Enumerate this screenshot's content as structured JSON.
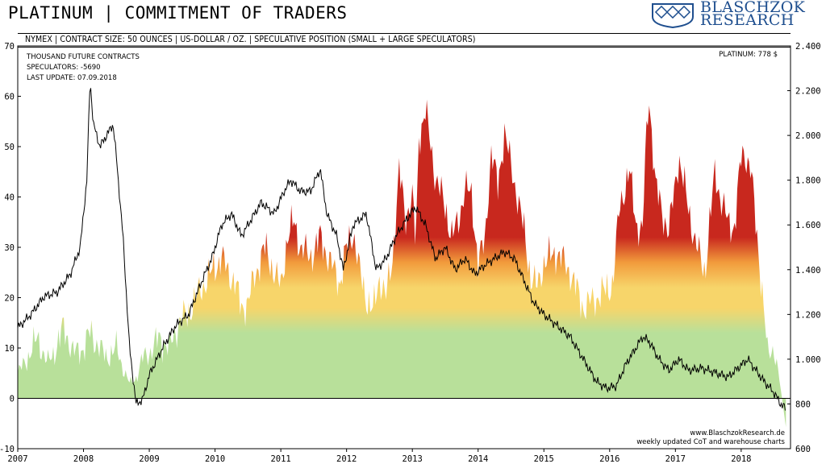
{
  "header": {
    "title": "PLATINUM | COMMITMENT OF TRADERS",
    "subtitle": "NYMEX | CONTRACT SIZE: 50 OUNCES | US-DOLLAR / OZ. | SPECULATIVE POSITION (SMALL + LARGE SPECULATORS)",
    "logo_line1": "BLASCHZOK",
    "logo_line2": "RESEARCH"
  },
  "colors": {
    "green": "#b8e09a",
    "yellow": "#f7d56a",
    "orange": "#f29b3c",
    "red": "#c8281e",
    "price_line": "#000000"
  },
  "chart_data": {
    "type": "area",
    "title": "PLATINUM | COMMITMENT OF TRADERS",
    "left_axis": {
      "label": "THOUSAND FUTURE CONTRACTS",
      "ylim": [
        -10,
        70
      ],
      "ticks": [
        70,
        60,
        50,
        40,
        30,
        20,
        10,
        0,
        -10
      ]
    },
    "right_axis": {
      "label": "PLATINUM",
      "ylim": [
        600,
        2400
      ],
      "ticks": [
        "2.400",
        "2.200",
        "2.000",
        "1.800",
        "1.600",
        "1.400",
        "1.200",
        "1.000",
        "800",
        "600"
      ],
      "tick_values": [
        2400,
        2200,
        2000,
        1800,
        1600,
        1400,
        1200,
        1000,
        800,
        600
      ]
    },
    "xlim": [
      2007.0,
      2018.75
    ],
    "x_ticks": [
      "2007",
      "2008",
      "2009",
      "2010",
      "2011",
      "2012",
      "2013",
      "2014",
      "2015",
      "2016",
      "2017",
      "2018"
    ],
    "color_bands": {
      "green_below": 13,
      "yellow_from": 18,
      "orange_from": 27,
      "red_from": 32
    },
    "info_lines": [
      "THOUSAND FUTURE CONTRACTS",
      "SPECULATORS: -5690",
      "LAST UPDATE: 07.09.2018"
    ],
    "price_label": "PLATINUM: 778 $",
    "credit_lines": [
      "www.BlaschzokResearch.de",
      "weekly updated CoT and warehouse charts"
    ],
    "series": [
      {
        "name": "Speculators (thousand contracts)",
        "axis": "left",
        "x": [
          2007.0,
          2007.15,
          2007.3,
          2007.45,
          2007.55,
          2007.7,
          2007.85,
          2008.0,
          2008.1,
          2008.2,
          2008.35,
          2008.5,
          2008.6,
          2008.7,
          2008.8,
          2008.9,
          2009.0,
          2009.15,
          2009.3,
          2009.45,
          2009.6,
          2009.75,
          2009.9,
          2010.0,
          2010.1,
          2010.2,
          2010.3,
          2010.4,
          2010.5,
          2010.6,
          2010.75,
          2010.9,
          2011.0,
          2011.1,
          2011.2,
          2011.3,
          2011.45,
          2011.6,
          2011.75,
          2011.9,
          2012.0,
          2012.1,
          2012.2,
          2012.3,
          2012.4,
          2012.5,
          2012.6,
          2012.7,
          2012.8,
          2012.9,
          2013.0,
          2013.05,
          2013.1,
          2013.2,
          2013.35,
          2013.5,
          2013.6,
          2013.7,
          2013.8,
          2013.9,
          2014.0,
          2014.1,
          2014.2,
          2014.3,
          2014.4,
          2014.5,
          2014.6,
          2014.7,
          2014.8,
          2014.9,
          2015.0,
          2015.2,
          2015.4,
          2015.6,
          2015.8,
          2016.0,
          2016.05,
          2016.15,
          2016.3,
          2016.4,
          2016.5,
          2016.55,
          2016.6,
          2016.7,
          2016.8,
          2016.9,
          2017.0,
          2017.05,
          2017.15,
          2017.3,
          2017.45,
          2017.6,
          2017.7,
          2017.8,
          2017.9,
          2018.0,
          2018.05,
          2018.15,
          2018.2,
          2018.3,
          2018.4,
          2018.5,
          2018.6,
          2018.68
        ],
        "values": [
          5,
          8,
          12,
          7,
          9,
          14,
          9,
          10,
          13,
          11,
          8,
          10,
          6,
          3,
          4,
          8,
          9,
          12,
          10,
          15,
          17,
          21,
          24,
          26,
          28,
          25,
          23,
          18,
          19,
          24,
          30,
          25,
          22,
          32,
          35,
          30,
          28,
          32,
          27,
          23,
          30,
          33,
          25,
          20,
          17,
          24,
          20,
          28,
          45,
          36,
          40,
          30,
          52,
          57,
          44,
          38,
          32,
          35,
          42,
          40,
          27,
          31,
          49,
          42,
          53,
          46,
          40,
          33,
          24,
          22,
          27,
          29,
          25,
          18,
          20,
          22,
          23,
          38,
          45,
          35,
          33,
          50,
          60,
          42,
          37,
          33,
          43,
          48,
          41,
          31,
          25,
          45,
          39,
          35,
          34,
          48,
          49,
          45,
          38,
          24,
          9,
          10,
          2,
          -5.7
        ]
      },
      {
        "name": "Platinum price (USD/oz)",
        "axis": "right",
        "x": [
          2007.0,
          2007.2,
          2007.4,
          2007.6,
          2007.8,
          2007.95,
          2008.05,
          2008.1,
          2008.15,
          2008.25,
          2008.35,
          2008.45,
          2008.5,
          2008.6,
          2008.7,
          2008.8,
          2008.9,
          2009.0,
          2009.2,
          2009.4,
          2009.6,
          2009.8,
          2009.95,
          2010.1,
          2010.25,
          2010.4,
          2010.5,
          2010.7,
          2010.9,
          2011.05,
          2011.15,
          2011.3,
          2011.45,
          2011.6,
          2011.7,
          2011.85,
          2011.95,
          2012.1,
          2012.3,
          2012.45,
          2012.6,
          2012.75,
          2012.9,
          2013.05,
          2013.2,
          2013.35,
          2013.5,
          2013.65,
          2013.8,
          2013.95,
          2014.1,
          2014.25,
          2014.4,
          2014.55,
          2014.7,
          2014.85,
          2015.0,
          2015.2,
          2015.4,
          2015.6,
          2015.8,
          2015.95,
          2016.1,
          2016.25,
          2016.4,
          2016.5,
          2016.6,
          2016.75,
          2016.9,
          2017.05,
          2017.2,
          2017.4,
          2017.6,
          2017.8,
          2017.95,
          2018.1,
          2018.2,
          2018.35,
          2018.5,
          2018.6,
          2018.68
        ],
        "values": [
          1140,
          1200,
          1280,
          1300,
          1380,
          1500,
          1800,
          2250,
          2050,
          1950,
          2000,
          2050,
          1900,
          1550,
          1050,
          800,
          820,
          930,
          1050,
          1150,
          1200,
          1350,
          1450,
          1600,
          1650,
          1550,
          1600,
          1700,
          1650,
          1750,
          1800,
          1750,
          1750,
          1850,
          1650,
          1550,
          1400,
          1600,
          1650,
          1400,
          1450,
          1550,
          1620,
          1680,
          1600,
          1450,
          1500,
          1400,
          1450,
          1380,
          1420,
          1450,
          1480,
          1450,
          1350,
          1250,
          1200,
          1150,
          1100,
          1000,
          900,
          870,
          880,
          980,
          1050,
          1100,
          1080,
          1000,
          950,
          1000,
          950,
          960,
          940,
          920,
          960,
          1000,
          960,
          900,
          850,
          800,
          778
        ]
      }
    ]
  }
}
